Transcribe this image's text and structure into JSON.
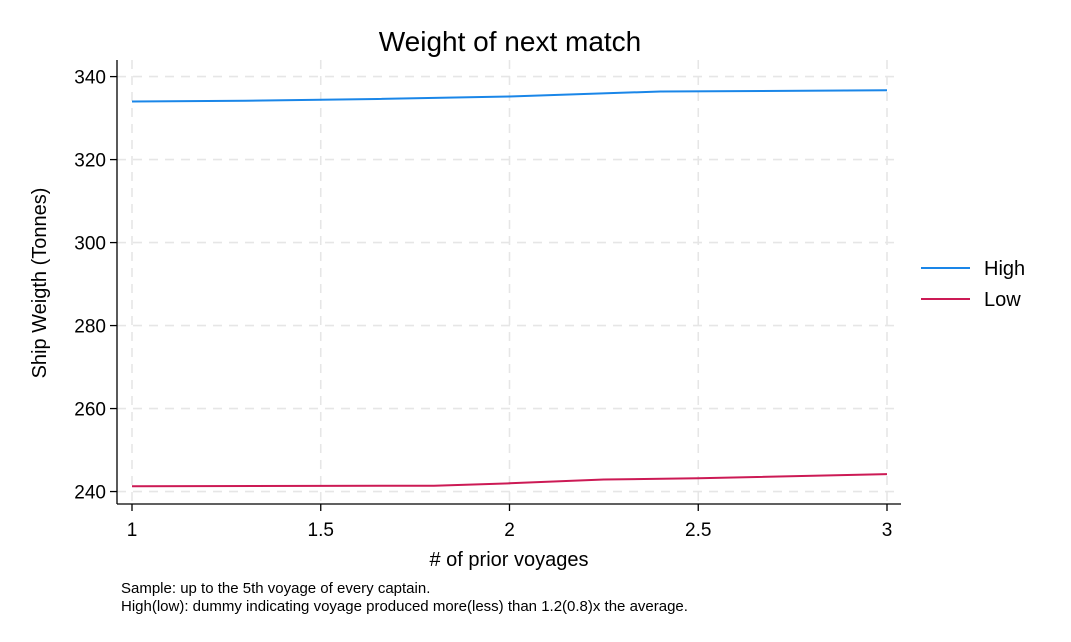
{
  "chart_data": {
    "type": "line",
    "title": "Weight of next match",
    "xlabel": "# of prior voyages",
    "ylabel": "Ship Weigth (Tonnes)",
    "xlim": [
      1,
      3
    ],
    "ylim": [
      237,
      344
    ],
    "x_ticks": [
      1,
      1.5,
      2,
      2.5,
      3
    ],
    "x_tick_labels": [
      "1",
      "1.5",
      "2",
      "2.5",
      "3"
    ],
    "y_ticks": [
      240,
      260,
      280,
      300,
      320,
      340
    ],
    "y_tick_labels": [
      "240",
      "260",
      "280",
      "300",
      "320",
      "340"
    ],
    "grid": true,
    "legend_position": "right",
    "series": [
      {
        "name": "High",
        "color": "#1a86e8",
        "x": [
          1,
          1.3,
          1.65,
          2.0,
          2.4,
          3.0
        ],
        "y": [
          334.0,
          334.2,
          334.6,
          335.2,
          336.4,
          336.7
        ]
      },
      {
        "name": "Low",
        "color": "#cc1a55",
        "x": [
          1,
          1.8,
          2.0,
          2.25,
          2.5,
          3.0
        ],
        "y": [
          241.3,
          241.4,
          242.0,
          242.9,
          243.2,
          244.2
        ]
      }
    ],
    "notes": [
      "Sample: up to the 5th voyage of every captain.",
      "High(low): dummy indicating voyage produced more(less) than 1.2(0.8)x the average."
    ]
  }
}
